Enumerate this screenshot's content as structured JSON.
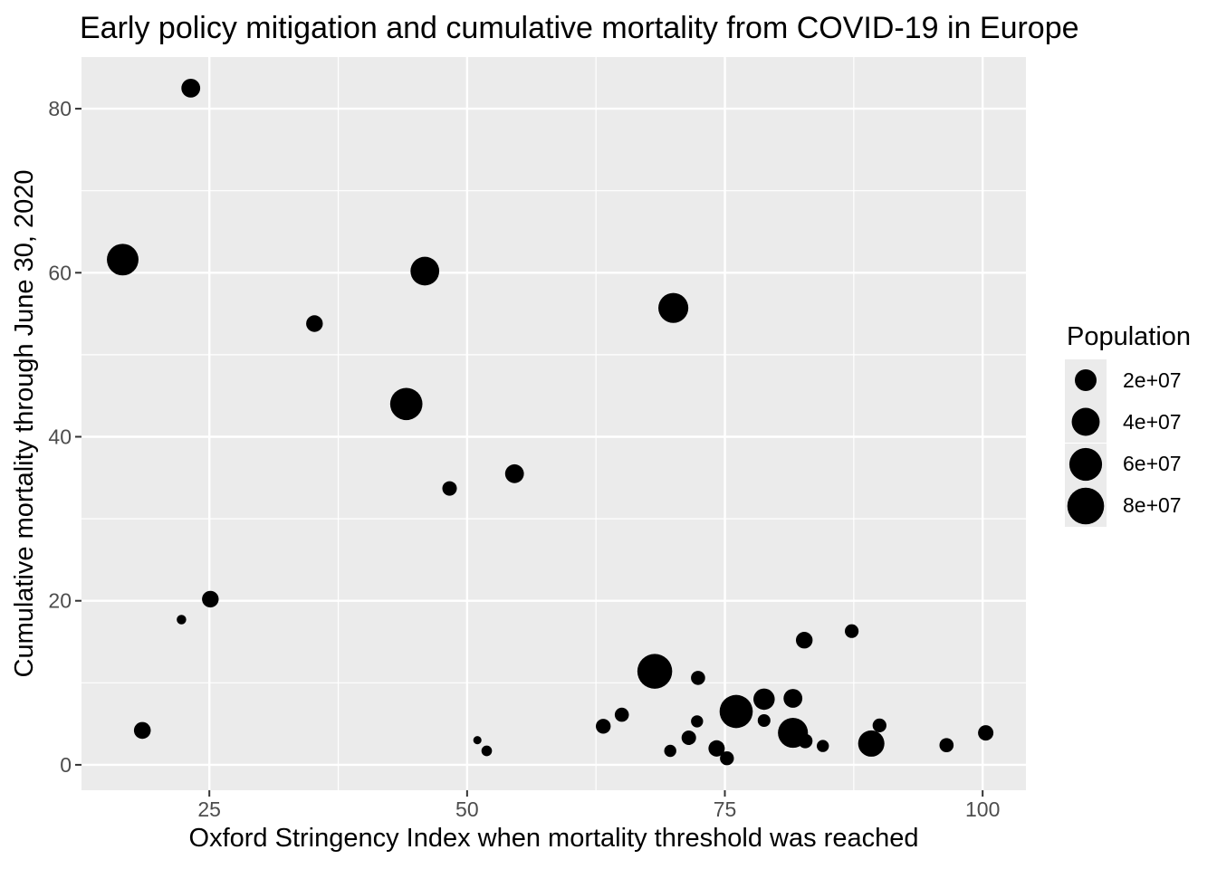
{
  "chart_data": {
    "type": "scatter",
    "title": "Early policy mitigation and cumulative mortality from COVID-19 in Europe",
    "xlabel": "Oxford Stringency Index when mortality threshold was reached",
    "ylabel": "Cumulative mortality through June 30, 2020",
    "xlim": [
      12.6,
      104.2
    ],
    "ylim": [
      -3.1,
      86.3
    ],
    "x_ticks": [
      25,
      50,
      75,
      100
    ],
    "y_ticks": [
      0,
      20,
      40,
      60,
      80
    ],
    "x_minor_gridlines": [
      37.5,
      62.5,
      87.5
    ],
    "y_minor_gridlines": [
      10,
      30,
      50,
      70
    ],
    "grid": true,
    "legend": {
      "title": "Population",
      "position": "right",
      "entries": [
        {
          "label": "2e+07",
          "value": 20000000
        },
        {
          "label": "4e+07",
          "value": 40000000
        },
        {
          "label": "6e+07",
          "value": 60000000
        },
        {
          "label": "8e+07",
          "value": 80000000
        }
      ]
    },
    "colors": {
      "point_color": "#000000",
      "panel_background": "#ebebeb",
      "gridline_color": "#ffffff",
      "tick_label_color": "#4d4d4d",
      "tick_mark_color": "#333333",
      "title_color": "#000000"
    },
    "size_encoding": "population",
    "points": [
      {
        "x": 16.6,
        "y": 61.6,
        "population": 55000000
      },
      {
        "x": 23.2,
        "y": 82.5,
        "population": 13000000
      },
      {
        "x": 22.3,
        "y": 17.7,
        "population": 700000
      },
      {
        "x": 25.1,
        "y": 20.2,
        "population": 8800000
      },
      {
        "x": 18.5,
        "y": 4.2,
        "population": 9100000
      },
      {
        "x": 35.2,
        "y": 53.8,
        "population": 8800000
      },
      {
        "x": 44.1,
        "y": 44.0,
        "population": 58000000
      },
      {
        "x": 45.9,
        "y": 60.2,
        "population": 43000000
      },
      {
        "x": 48.3,
        "y": 33.7,
        "population": 5400000
      },
      {
        "x": 54.6,
        "y": 35.5,
        "population": 13000000
      },
      {
        "x": 70.0,
        "y": 55.7,
        "population": 48000000
      },
      {
        "x": 68.2,
        "y": 11.4,
        "population": 70000000
      },
      {
        "x": 72.4,
        "y": 10.6,
        "population": 4900000
      },
      {
        "x": 63.2,
        "y": 4.7,
        "population": 5900000
      },
      {
        "x": 65.0,
        "y": 6.1,
        "population": 4900000
      },
      {
        "x": 72.3,
        "y": 5.3,
        "population": 2600000
      },
      {
        "x": 71.5,
        "y": 3.3,
        "population": 5400000
      },
      {
        "x": 69.7,
        "y": 1.7,
        "population": 2600000
      },
      {
        "x": 74.2,
        "y": 2.0,
        "population": 8200000
      },
      {
        "x": 75.2,
        "y": 0.8,
        "population": 4600000
      },
      {
        "x": 76.1,
        "y": 6.5,
        "population": 62000000
      },
      {
        "x": 78.8,
        "y": 8.0,
        "population": 19000000
      },
      {
        "x": 78.8,
        "y": 5.4,
        "population": 3200000
      },
      {
        "x": 81.6,
        "y": 8.1,
        "population": 13000000
      },
      {
        "x": 82.7,
        "y": 15.2,
        "population": 8800000
      },
      {
        "x": 87.3,
        "y": 16.3,
        "population": 4400000
      },
      {
        "x": 81.6,
        "y": 3.9,
        "population": 48000000
      },
      {
        "x": 82.8,
        "y": 2.9,
        "population": 5400000
      },
      {
        "x": 84.5,
        "y": 2.3,
        "population": 2600000
      },
      {
        "x": 90.0,
        "y": 4.8,
        "population": 4500000
      },
      {
        "x": 89.2,
        "y": 2.6,
        "population": 34000000
      },
      {
        "x": 51.0,
        "y": 3.0,
        "population": 200000
      },
      {
        "x": 51.9,
        "y": 1.7,
        "population": 1300000
      },
      {
        "x": 96.5,
        "y": 2.4,
        "population": 4900000
      },
      {
        "x": 100.3,
        "y": 3.9,
        "population": 6700000
      }
    ]
  }
}
